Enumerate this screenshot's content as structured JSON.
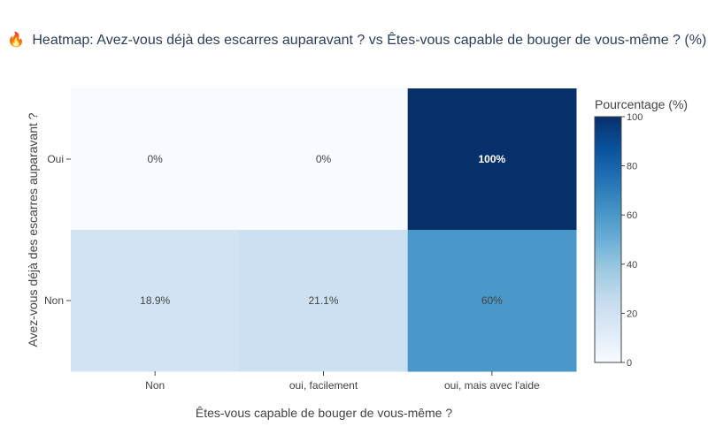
{
  "chart_data": {
    "type": "heatmap",
    "title_icon": "🔥",
    "title": "Heatmap: Avez-vous déjà des escarres auparavant ? vs Êtes-vous capable de bouger de vous-même ? (%)",
    "xlabel": "Êtes-vous capable de bouger de vous-même ?",
    "ylabel": "Avez-vous déjà des escarres auparavant ?",
    "x_categories": [
      "Non",
      "oui, facilement",
      "oui, mais avec l'aide"
    ],
    "y_categories": [
      "Oui",
      "Non"
    ],
    "values": [
      [
        0,
        0,
        100
      ],
      [
        18.9,
        21.1,
        60
      ]
    ],
    "labels": [
      [
        "0%",
        "0%",
        "100%"
      ],
      [
        "18.9%",
        "21.1%",
        "60%"
      ]
    ],
    "colorscale": "Blues",
    "colorbar": {
      "title": "Pourcentage (%)",
      "range": [
        0,
        100
      ],
      "ticks": [
        0,
        20,
        40,
        60,
        80,
        100
      ]
    }
  }
}
